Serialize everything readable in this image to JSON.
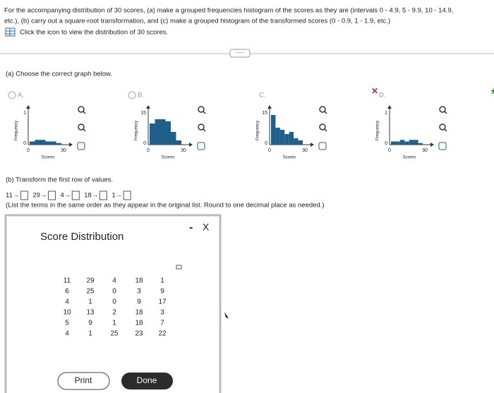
{
  "header": {
    "instructions": "For the accompanying distribution of 30 scores, (a) make a grouped frequencies histogram of the scores as they are (intervals 0 - 4.9, 5 - 9.9, 10 - 14.9,",
    "instructions_cont": "etc.), (b) carry out a square-root transformation, and (c) make a grouped histogram of the transformed scores (0 - 0.9, 1 - 1.9, etc.)",
    "link": "Click the icon to view the distribution of 30 scores."
  },
  "part_a": {
    "prompt": "(a) Choose the correct graph below.",
    "options": [
      {
        "label": "A.",
        "y_label": "Frequency",
        "x_label": "Scores",
        "y_top": "1",
        "y_zero": "0",
        "x_start": "0",
        "x_end": "30"
      },
      {
        "label": "B.",
        "y_label": "Frequency",
        "x_label": "Scores",
        "y_top": "15",
        "y_zero": "0",
        "x_start": "0",
        "x_end": "30"
      },
      {
        "label": "C.",
        "y_label": "Frequency",
        "x_label": "Scores",
        "y_top": "15",
        "y_zero": "0",
        "x_start": "0",
        "x_end": "30"
      },
      {
        "label": "D.",
        "y_label": "Frequency",
        "x_label": "Scores",
        "y_top": "1",
        "y_zero": "0",
        "x_start": "0",
        "x_end": "30"
      }
    ]
  },
  "part_b": {
    "prompt": "(b) Transform the first row of values.",
    "items": [
      "11→",
      "29→",
      "4→",
      "18→",
      "1→"
    ],
    "note": "(List the terms in the same order as they appear in the original list. Round to one decimal place as needed.)"
  },
  "popup": {
    "title": "Score Distribution",
    "minimize": "-",
    "close": "X",
    "table": {
      "rows": [
        [
          "11",
          "29",
          "4",
          "18",
          "1"
        ],
        [
          "6",
          "25",
          "0",
          "3",
          "9"
        ],
        [
          "4",
          "1",
          "0",
          "9",
          "17"
        ],
        [
          "10",
          "13",
          "2",
          "18",
          "3"
        ],
        [
          "5",
          "9",
          "1",
          "18",
          "7"
        ],
        [
          "4",
          "1",
          "25",
          "23",
          "22"
        ]
      ]
    },
    "print": "Print",
    "done": "Done"
  }
}
